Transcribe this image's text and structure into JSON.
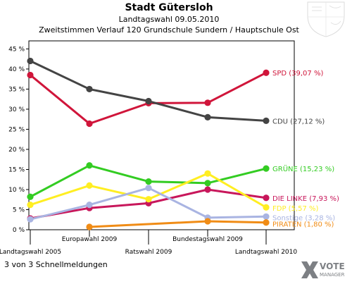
{
  "header": {
    "title": "Stadt Gütersloh",
    "subtitle": "Landtagswahl 09.05.2010",
    "subtitle2": "Zweitstimmen Verlauf 120 Grundschule Sundern / Hauptschule Ost"
  },
  "footer": {
    "note": "3 von 3 Schnellmeldungen"
  },
  "logo": {
    "text": "VOTE",
    "subtext": "MANAGER"
  },
  "chart_data": {
    "type": "line",
    "title": "Stadt Gütersloh",
    "subtitle": "Landtagswahl 09.05.2010 — Zweitstimmen Verlauf 120 Grundschule Sundern / Hauptschule Ost",
    "x_categories": [
      "Landtagswahl 2005",
      "Europawahl 2009",
      "Ratswahl 2009",
      "Bundestagswahl 2009",
      "Landtagswahl 2010"
    ],
    "y_ticks": [
      "0 %",
      "5 %",
      "10 %",
      "15 %",
      "20 %",
      "25 %",
      "30 %",
      "35 %",
      "40 %",
      "45 %"
    ],
    "ylim": [
      0,
      47
    ],
    "grid": false,
    "series": [
      {
        "name": "SPD",
        "label": "SPD (39,07 %)",
        "color": "#d0153a",
        "values": [
          38.5,
          26.4,
          31.5,
          31.6,
          39.07
        ]
      },
      {
        "name": "CDU",
        "label": "CDU (27,12 %)",
        "color": "#444444",
        "values": [
          42.0,
          35.0,
          32.0,
          28.0,
          27.12
        ]
      },
      {
        "name": "GRÜNE",
        "label": "GRÜNE (15,23 %)",
        "color": "#33cc22",
        "values": [
          8.2,
          16.0,
          12.0,
          11.6,
          15.23
        ]
      },
      {
        "name": "DIE LINKE",
        "label": "DIE LINKE (7,93 %)",
        "color": "#c8175b",
        "values": [
          2.8,
          5.4,
          6.6,
          10.0,
          7.93
        ]
      },
      {
        "name": "FDP",
        "label": "FDP (5,57 %)",
        "color": "#ffee22",
        "values": [
          6.2,
          11.0,
          7.6,
          14.0,
          5.57
        ]
      },
      {
        "name": "Sonstige",
        "label": "Sonstige (3,28 %)",
        "color": "#a9b4e2",
        "values": [
          2.6,
          6.2,
          10.4,
          3.0,
          3.28
        ]
      },
      {
        "name": "PIRATEN",
        "label": "PIRATEN (1,80 %)",
        "color": "#f08c16",
        "values": [
          null,
          0.7,
          null,
          2.1,
          1.8
        ]
      }
    ]
  }
}
